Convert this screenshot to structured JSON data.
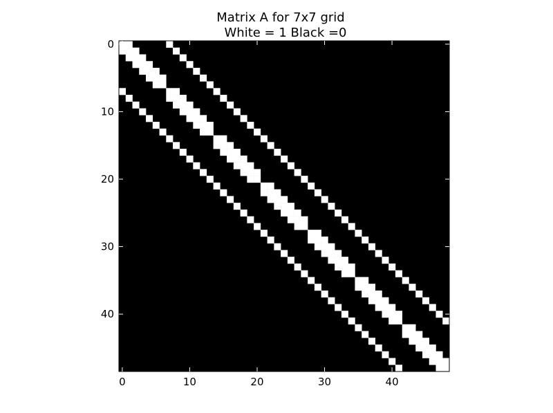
{
  "chart_data": {
    "type": "heatmap",
    "title": "Matrix A for 7x7 grid",
    "subtitle": "White = 1 Black =0",
    "xlabel": "",
    "ylabel": "",
    "grid": false,
    "size": 49,
    "grid_n": 7,
    "xlim": [
      -0.5,
      48.5
    ],
    "ylim": [
      48.5,
      -0.5
    ],
    "x_ticks": [
      0,
      10,
      20,
      30,
      40
    ],
    "y_ticks": [
      0,
      10,
      20,
      30,
      40
    ],
    "colors": {
      "one": "#ffffff",
      "zero": "#000000"
    }
  }
}
